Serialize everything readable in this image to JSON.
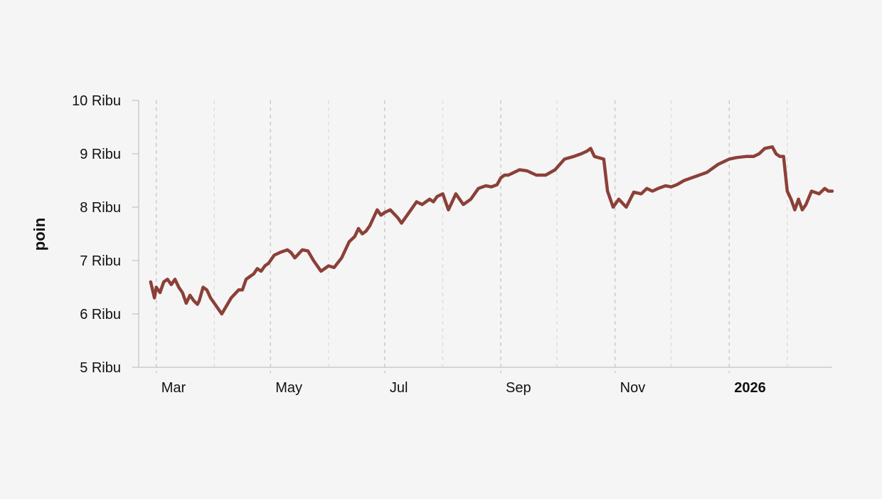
{
  "chart_data": {
    "type": "line",
    "title": "",
    "xlabel": "",
    "ylabel": "poin",
    "x_axis_type": "date",
    "xlim": [
      "2025-02-20",
      "2026-02-25"
    ],
    "ylim": [
      5000,
      10000
    ],
    "y_ticks": [
      {
        "value": 5000,
        "label": "5 Ribu"
      },
      {
        "value": 6000,
        "label": "6 Ribu"
      },
      {
        "value": 7000,
        "label": "7 Ribu"
      },
      {
        "value": 8000,
        "label": "8 Ribu"
      },
      {
        "value": 9000,
        "label": "9 Ribu"
      },
      {
        "value": 10000,
        "label": "10 Ribu"
      }
    ],
    "x_ticks": [
      {
        "date": "2025-03-01",
        "label": "Mar",
        "bold": false
      },
      {
        "date": "2025-05-01",
        "label": "May",
        "bold": false
      },
      {
        "date": "2025-07-01",
        "label": "Jul",
        "bold": false
      },
      {
        "date": "2025-09-01",
        "label": "Sep",
        "bold": false
      },
      {
        "date": "2025-11-01",
        "label": "Nov",
        "bold": false
      },
      {
        "date": "2026-01-01",
        "label": "2026",
        "bold": true
      }
    ],
    "x_minor_gridlines": [
      "2025-04-01",
      "2025-06-01",
      "2025-08-01",
      "2025-10-01",
      "2025-12-01",
      "2026-02-01"
    ],
    "grid": {
      "x": true,
      "y": false,
      "style": "dashed"
    },
    "colors": {
      "line": "#8b4038",
      "grid_major": "#c8c8c8",
      "grid_minor": "#dddddd",
      "axis": "#cccccc",
      "background": "#f5f5f5"
    },
    "series": [
      {
        "name": "",
        "x": [
          "2025-02-26",
          "2025-02-28",
          "2025-03-01",
          "2025-03-03",
          "2025-03-05",
          "2025-03-07",
          "2025-03-09",
          "2025-03-11",
          "2025-03-13",
          "2025-03-15",
          "2025-03-17",
          "2025-03-19",
          "2025-03-21",
          "2025-03-23",
          "2025-03-24",
          "2025-03-26",
          "2025-03-28",
          "2025-03-30",
          "2025-04-01",
          "2025-04-05",
          "2025-04-10",
          "2025-04-14",
          "2025-04-16",
          "2025-04-18",
          "2025-04-20",
          "2025-04-22",
          "2025-04-24",
          "2025-04-26",
          "2025-04-28",
          "2025-04-30",
          "2025-05-03",
          "2025-05-06",
          "2025-05-10",
          "2025-05-12",
          "2025-05-14",
          "2025-05-18",
          "2025-05-21",
          "2025-05-24",
          "2025-05-28",
          "2025-06-01",
          "2025-06-04",
          "2025-06-08",
          "2025-06-12",
          "2025-06-15",
          "2025-06-17",
          "2025-06-19",
          "2025-06-21",
          "2025-06-23",
          "2025-06-27",
          "2025-06-29",
          "2025-07-01",
          "2025-07-04",
          "2025-07-08",
          "2025-07-10",
          "2025-07-13",
          "2025-07-15",
          "2025-07-18",
          "2025-07-21",
          "2025-07-23",
          "2025-07-25",
          "2025-07-27",
          "2025-07-29",
          "2025-08-01",
          "2025-08-04",
          "2025-08-08",
          "2025-08-12",
          "2025-08-16",
          "2025-08-20",
          "2025-08-24",
          "2025-08-27",
          "2025-08-30",
          "2025-09-01",
          "2025-09-03",
          "2025-09-05",
          "2025-09-08",
          "2025-09-11",
          "2025-09-15",
          "2025-09-20",
          "2025-09-25",
          "2025-09-30",
          "2025-10-05",
          "2025-10-10",
          "2025-10-14",
          "2025-10-17",
          "2025-10-19",
          "2025-10-21",
          "2025-10-23",
          "2025-10-26",
          "2025-10-28",
          "2025-10-31",
          "2025-11-03",
          "2025-11-07",
          "2025-11-11",
          "2025-11-15",
          "2025-11-18",
          "2025-11-21",
          "2025-11-24",
          "2025-11-28",
          "2025-12-01",
          "2025-12-04",
          "2025-12-08",
          "2025-12-12",
          "2025-12-16",
          "2025-12-20",
          "2025-12-26",
          "2026-01-01",
          "2026-01-05",
          "2026-01-10",
          "2026-01-14",
          "2026-01-17",
          "2026-01-20",
          "2026-01-24",
          "2026-01-26",
          "2026-01-28",
          "2026-01-30",
          "2026-02-01",
          "2026-02-03",
          "2026-02-05",
          "2026-02-07",
          "2026-02-09",
          "2026-02-11",
          "2026-02-14",
          "2026-02-18",
          "2026-02-21",
          "2026-02-23",
          "2026-02-25"
        ],
        "values": [
          6600,
          6300,
          6500,
          6400,
          6600,
          6650,
          6550,
          6650,
          6500,
          6400,
          6200,
          6350,
          6250,
          6180,
          6250,
          6500,
          6450,
          6300,
          6200,
          6000,
          6300,
          6450,
          6450,
          6650,
          6700,
          6750,
          6850,
          6800,
          6900,
          6950,
          7100,
          7150,
          7200,
          7150,
          7050,
          7200,
          7180,
          7000,
          6800,
          6900,
          6870,
          7050,
          7350,
          7450,
          7600,
          7500,
          7550,
          7650,
          7950,
          7850,
          7900,
          7950,
          7800,
          7700,
          7850,
          7950,
          8100,
          8050,
          8100,
          8150,
          8100,
          8200,
          8250,
          7950,
          8250,
          8050,
          8150,
          8350,
          8400,
          8380,
          8420,
          8550,
          8600,
          8600,
          8650,
          8700,
          8680,
          8600,
          8600,
          8700,
          8900,
          8950,
          9000,
          9050,
          9100,
          8950,
          8930,
          8900,
          8300,
          8000,
          8150,
          8000,
          8280,
          8250,
          8350,
          8300,
          8350,
          8400,
          8380,
          8420,
          8500,
          8550,
          8600,
          8650,
          8800,
          8900,
          8930,
          8950,
          8950,
          9000,
          9100,
          9130,
          9000,
          8950,
          8950,
          8300,
          8150,
          7950,
          8150,
          7950,
          8050,
          8300,
          8250,
          8350,
          8300,
          8300
        ]
      }
    ]
  }
}
